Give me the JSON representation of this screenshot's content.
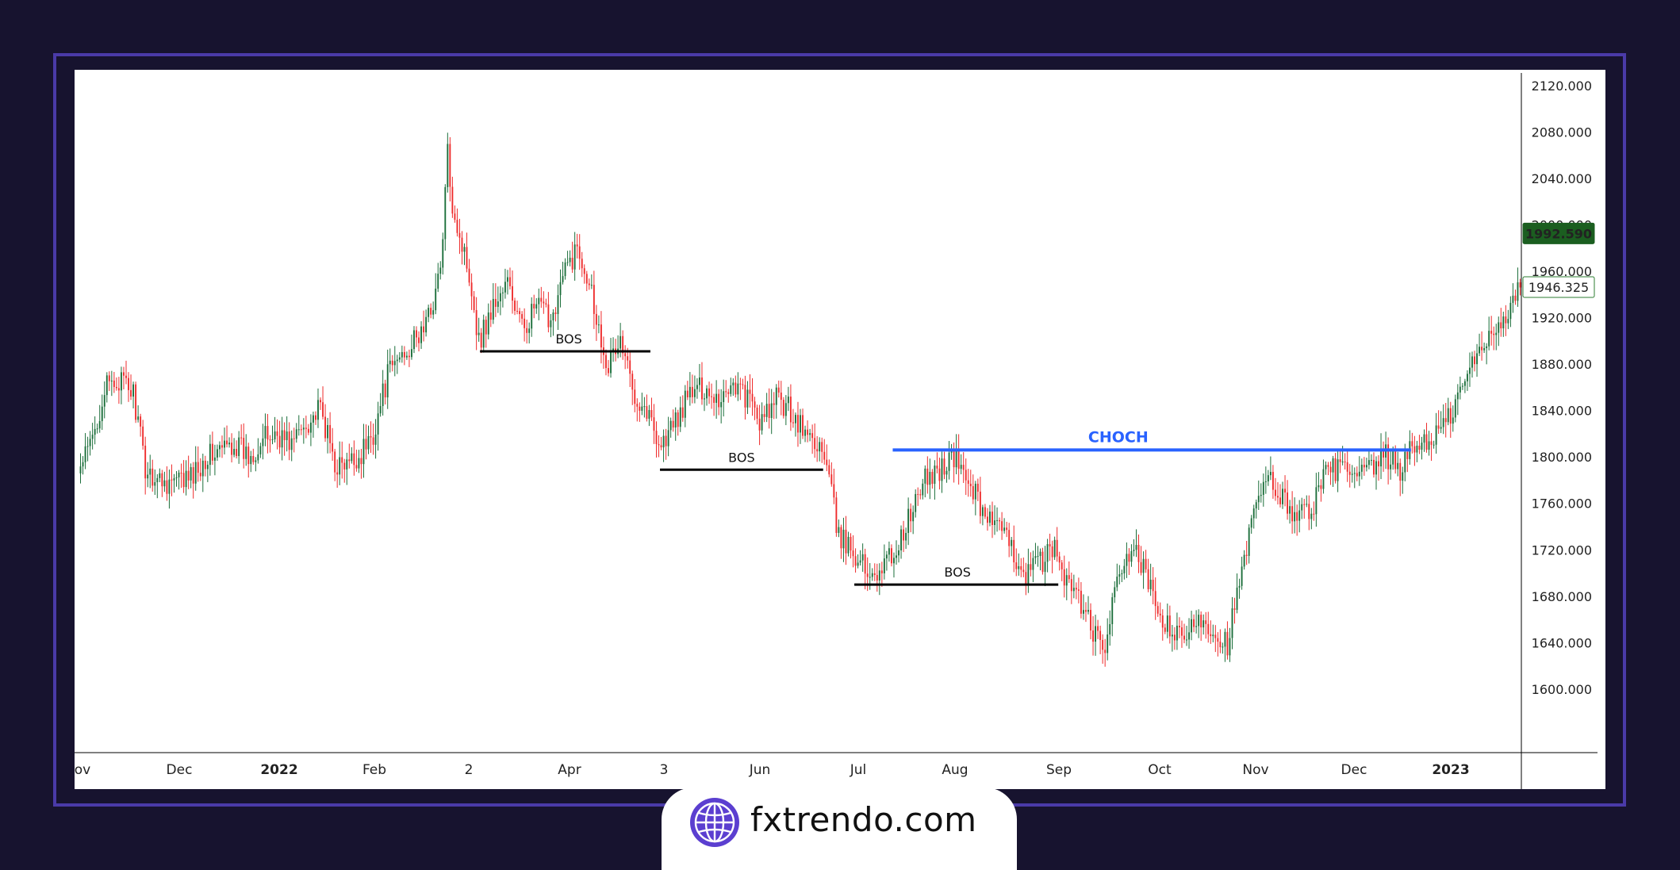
{
  "chart_data": {
    "type": "candlestick",
    "ylim": [
      1580,
      2120
    ],
    "y_ticks": [
      "2120.000",
      "2080.000",
      "2040.000",
      "2000.000",
      "1960.000",
      "1920.000",
      "1880.000",
      "1840.000",
      "1800.000",
      "1760.000",
      "1720.000",
      "1680.000",
      "1640.000",
      "1600.000"
    ],
    "x_labels": [
      {
        "text": "ov",
        "bold": false
      },
      {
        "text": "Dec",
        "bold": false
      },
      {
        "text": "2022",
        "bold": true
      },
      {
        "text": "Feb",
        "bold": false
      },
      {
        "text": "2",
        "bold": false
      },
      {
        "text": "Apr",
        "bold": false
      },
      {
        "text": "3",
        "bold": false
      },
      {
        "text": "Jun",
        "bold": false
      },
      {
        "text": "Jul",
        "bold": false
      },
      {
        "text": "Aug",
        "bold": false
      },
      {
        "text": "Sep",
        "bold": false
      },
      {
        "text": "Oct",
        "bold": false
      },
      {
        "text": "Nov",
        "bold": false
      },
      {
        "text": "Dec",
        "bold": false
      },
      {
        "text": "2023",
        "bold": true
      }
    ],
    "price_labels": [
      {
        "text": "1992.590",
        "value": 1992.59,
        "style": "filled",
        "color": "#1b5e20"
      },
      {
        "text": "1946.325",
        "value": 1946.325,
        "style": "outline",
        "color": "#2e7d32"
      }
    ],
    "anchors": [
      [
        0,
        1790
      ],
      [
        5,
        1815
      ],
      [
        10,
        1858
      ],
      [
        16,
        1866
      ],
      [
        22,
        1855
      ],
      [
        27,
        1790
      ],
      [
        33,
        1780
      ],
      [
        40,
        1778
      ],
      [
        46,
        1782
      ],
      [
        52,
        1800
      ],
      [
        58,
        1805
      ],
      [
        64,
        1812
      ],
      [
        70,
        1800
      ],
      [
        76,
        1815
      ],
      [
        82,
        1820
      ],
      [
        88,
        1812
      ],
      [
        94,
        1830
      ],
      [
        100,
        1840
      ],
      [
        106,
        1795
      ],
      [
        110,
        1790
      ],
      [
        116,
        1800
      ],
      [
        122,
        1820
      ],
      [
        128,
        1870
      ],
      [
        134,
        1890
      ],
      [
        140,
        1900
      ],
      [
        145,
        1920
      ],
      [
        150,
        1960
      ],
      [
        153,
        2060
      ],
      [
        155,
        2020
      ],
      [
        158,
        1990
      ],
      [
        162,
        1960
      ],
      [
        166,
        1900
      ],
      [
        172,
        1930
      ],
      [
        178,
        1950
      ],
      [
        184,
        1910
      ],
      [
        190,
        1930
      ],
      [
        196,
        1920
      ],
      [
        202,
        1960
      ],
      [
        207,
        1980
      ],
      [
        212,
        1955
      ],
      [
        216,
        1910
      ],
      [
        220,
        1880
      ],
      [
        225,
        1900
      ],
      [
        230,
        1860
      ],
      [
        236,
        1840
      ],
      [
        242,
        1810
      ],
      [
        248,
        1830
      ],
      [
        254,
        1855
      ],
      [
        260,
        1860
      ],
      [
        266,
        1850
      ],
      [
        272,
        1865
      ],
      [
        278,
        1850
      ],
      [
        284,
        1828
      ],
      [
        290,
        1850
      ],
      [
        296,
        1840
      ],
      [
        302,
        1820
      ],
      [
        308,
        1810
      ],
      [
        312,
        1780
      ],
      [
        316,
        1730
      ],
      [
        322,
        1720
      ],
      [
        328,
        1700
      ],
      [
        334,
        1705
      ],
      [
        340,
        1720
      ],
      [
        346,
        1750
      ],
      [
        352,
        1780
      ],
      [
        358,
        1790
      ],
      [
        364,
        1800
      ],
      [
        370,
        1780
      ],
      [
        376,
        1755
      ],
      [
        382,
        1740
      ],
      [
        388,
        1720
      ],
      [
        394,
        1700
      ],
      [
        400,
        1710
      ],
      [
        406,
        1720
      ],
      [
        412,
        1690
      ],
      [
        418,
        1670
      ],
      [
        422,
        1650
      ],
      [
        426,
        1630
      ],
      [
        430,
        1670
      ],
      [
        436,
        1720
      ],
      [
        442,
        1710
      ],
      [
        448,
        1670
      ],
      [
        454,
        1650
      ],
      [
        460,
        1640
      ],
      [
        466,
        1665
      ],
      [
        472,
        1650
      ],
      [
        478,
        1640
      ],
      [
        484,
        1700
      ],
      [
        490,
        1760
      ],
      [
        496,
        1780
      ],
      [
        502,
        1760
      ],
      [
        508,
        1750
      ],
      [
        514,
        1760
      ],
      [
        520,
        1790
      ],
      [
        526,
        1790
      ],
      [
        532,
        1780
      ],
      [
        538,
        1790
      ],
      [
        544,
        1800
      ],
      [
        550,
        1790
      ],
      [
        556,
        1810
      ],
      [
        562,
        1815
      ],
      [
        568,
        1825
      ],
      [
        574,
        1850
      ],
      [
        580,
        1880
      ],
      [
        586,
        1900
      ],
      [
        592,
        1920
      ],
      [
        597,
        1930
      ],
      [
        600,
        1946
      ]
    ],
    "n_candles": 601,
    "levels": [
      {
        "label": "BOS",
        "value": 1891,
        "from": 167,
        "to": 238,
        "color": "#000000",
        "label_at": 204
      },
      {
        "label": "BOS",
        "value": 1789,
        "from": 242,
        "to": 310,
        "color": "#000000",
        "label_at": 276
      },
      {
        "label": "BOS",
        "value": 1690,
        "from": 323,
        "to": 408,
        "color": "#000000",
        "label_at": 366
      },
      {
        "label": "CHOCH",
        "value": 1806,
        "from": 339,
        "to": 555,
        "color": "#2962ff",
        "label_at": 433
      }
    ],
    "colors": {
      "up": "#1b6e3a",
      "down": "#ee2b2b",
      "axis": "#000000",
      "grid": "#ffffff"
    }
  },
  "brand": {
    "name": "fxtrendo.com",
    "globe_color": "#5b3fd0"
  }
}
